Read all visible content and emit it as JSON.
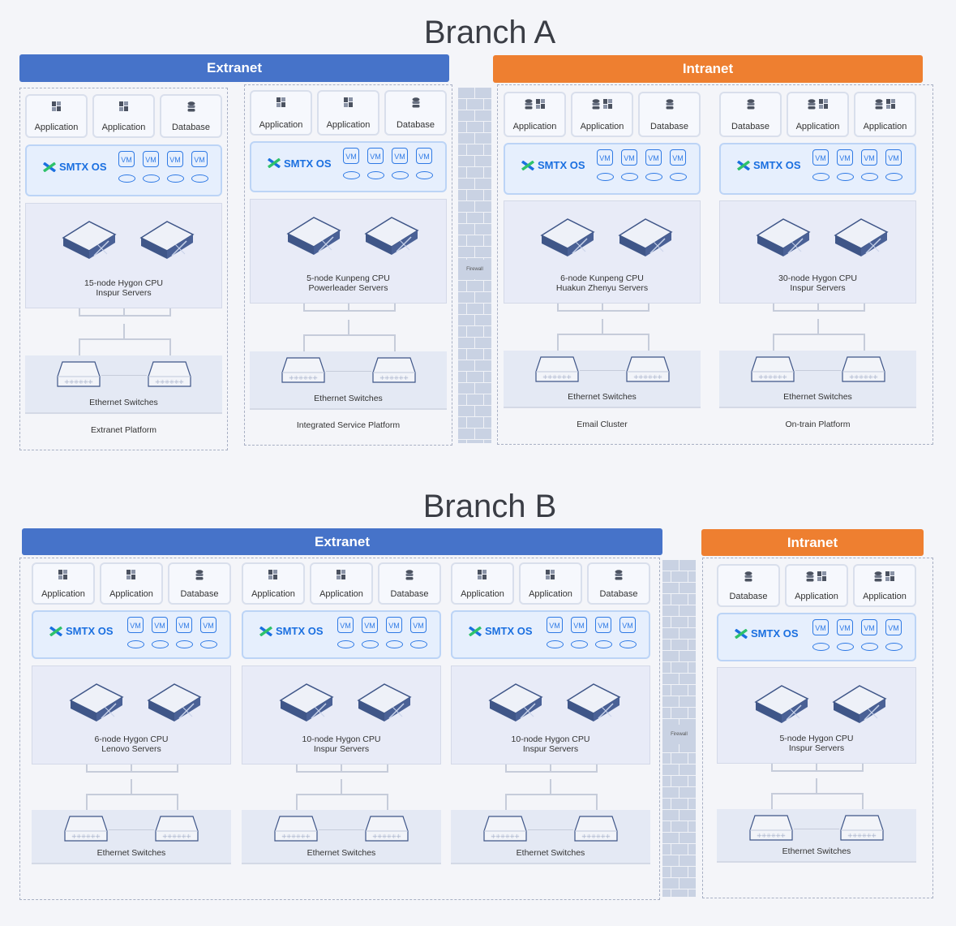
{
  "branches": [
    {
      "title": "Branch A",
      "extranet_label": "Extranet",
      "intranet_label": "Intranet",
      "firewall_label": "Firewall",
      "clusters": [
        {
          "zone": "extranet",
          "apps": [
            {
              "label": "Application",
              "icons": [
                "app"
              ]
            },
            {
              "label": "Application",
              "icons": [
                "app"
              ]
            },
            {
              "label": "Database",
              "icons": [
                "db"
              ]
            }
          ],
          "os": "SMTX OS",
          "vms": [
            "VM",
            "VM",
            "VM",
            "VM"
          ],
          "servers": "15-node Hygon CPU\nInspur Servers",
          "switches": "Ethernet Switches",
          "platform": "Extranet Platform"
        },
        {
          "zone": "extranet",
          "apps": [
            {
              "label": "Application",
              "icons": [
                "app"
              ]
            },
            {
              "label": "Application",
              "icons": [
                "app"
              ]
            },
            {
              "label": "Database",
              "icons": [
                "db"
              ]
            }
          ],
          "os": "SMTX OS",
          "vms": [
            "VM",
            "VM",
            "VM",
            "VM"
          ],
          "servers": "5-node Kunpeng CPU\nPowerleader Servers",
          "switches": "Ethernet Switches",
          "platform": "Integrated Service Platform"
        },
        {
          "zone": "intranet",
          "apps": [
            {
              "label": "Application",
              "icons": [
                "db",
                "app"
              ]
            },
            {
              "label": "Application",
              "icons": [
                "db",
                "app"
              ]
            },
            {
              "label": "Database",
              "icons": [
                "db"
              ]
            }
          ],
          "os": "SMTX OS",
          "vms": [
            "VM",
            "VM",
            "VM",
            "VM"
          ],
          "servers": "6-node Kunpeng CPU\nHuakun Zhenyu Servers",
          "switches": "Ethernet Switches",
          "platform": "Email Cluster"
        },
        {
          "zone": "intranet",
          "apps": [
            {
              "label": "Database",
              "icons": [
                "db"
              ]
            },
            {
              "label": "Application",
              "icons": [
                "db",
                "app"
              ]
            },
            {
              "label": "Application",
              "icons": [
                "db",
                "app"
              ]
            }
          ],
          "os": "SMTX OS",
          "vms": [
            "VM",
            "VM",
            "VM",
            "VM"
          ],
          "servers": "30-node Hygon CPU\nInspur Servers",
          "switches": "Ethernet Switches",
          "platform": "On-train Platform"
        }
      ]
    },
    {
      "title": "Branch B",
      "extranet_label": "Extranet",
      "intranet_label": "Intranet",
      "firewall_label": "Firewall",
      "clusters": [
        {
          "zone": "extranet",
          "apps": [
            {
              "label": "Application",
              "icons": [
                "app"
              ]
            },
            {
              "label": "Application",
              "icons": [
                "app"
              ]
            },
            {
              "label": "Database",
              "icons": [
                "db"
              ]
            }
          ],
          "os": "SMTX OS",
          "vms": [
            "VM",
            "VM",
            "VM",
            "VM"
          ],
          "servers": "6-node Hygon CPU\nLenovo Servers",
          "switches": "Ethernet Switches"
        },
        {
          "zone": "extranet",
          "apps": [
            {
              "label": "Application",
              "icons": [
                "app"
              ]
            },
            {
              "label": "Application",
              "icons": [
                "app"
              ]
            },
            {
              "label": "Database",
              "icons": [
                "db"
              ]
            }
          ],
          "os": "SMTX OS",
          "vms": [
            "VM",
            "VM",
            "VM",
            "VM"
          ],
          "servers": "10-node Hygon CPU\nInspur Servers",
          "switches": "Ethernet Switches"
        },
        {
          "zone": "extranet",
          "apps": [
            {
              "label": "Application",
              "icons": [
                "app"
              ]
            },
            {
              "label": "Application",
              "icons": [
                "app"
              ]
            },
            {
              "label": "Database",
              "icons": [
                "db"
              ]
            }
          ],
          "os": "SMTX OS",
          "vms": [
            "VM",
            "VM",
            "VM",
            "VM"
          ],
          "servers": "10-node Hygon CPU\nInspur Servers",
          "switches": "Ethernet Switches"
        },
        {
          "zone": "intranet",
          "apps": [
            {
              "label": "Database",
              "icons": [
                "db"
              ]
            },
            {
              "label": "Application",
              "icons": [
                "db",
                "app"
              ]
            },
            {
              "label": "Application",
              "icons": [
                "db",
                "app"
              ]
            }
          ],
          "os": "SMTX OS",
          "vms": [
            "VM",
            "VM",
            "VM",
            "VM"
          ],
          "servers": "5-node Hygon CPU\nInspur Servers",
          "switches": "Ethernet Switches"
        }
      ]
    }
  ],
  "colors": {
    "extranet": "#4673c9",
    "intranet": "#ee7f30",
    "smtx_blue": "#1a6fe0",
    "smtx_green": "#2fc26b"
  }
}
